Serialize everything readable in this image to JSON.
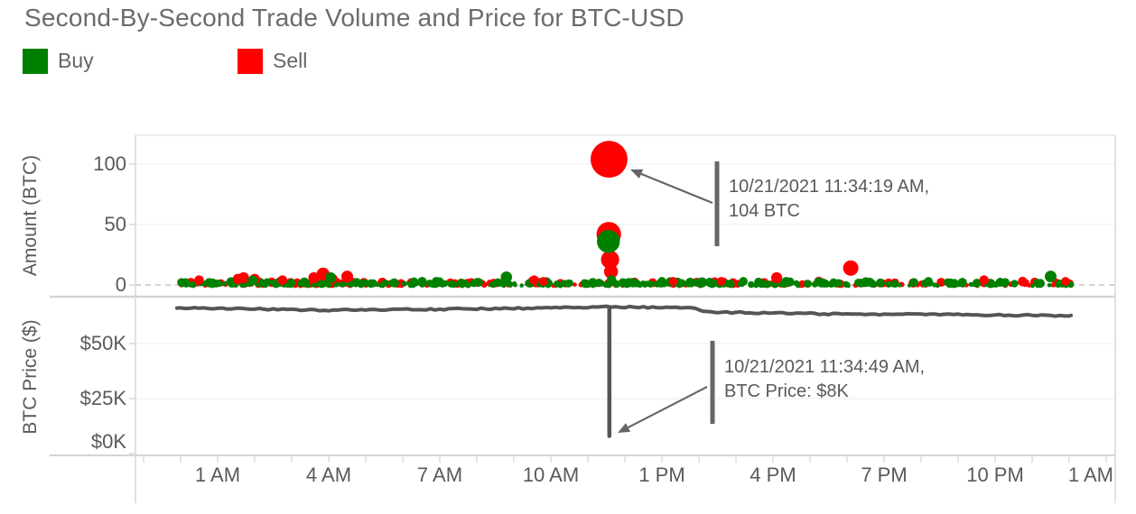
{
  "title": "Second-By-Second Trade Volume and Price for BTC-USD",
  "legend": {
    "items": [
      {
        "label": "Buy",
        "color": "#008000"
      },
      {
        "label": "Sell",
        "color": "#ff0000"
      }
    ]
  },
  "colors": {
    "buy": "#008000",
    "sell": "#ff0000",
    "price_line": "#555555",
    "annotation": "#666666",
    "axis_text": "#595959",
    "grid": "#ececec",
    "zero_dash": "#c4c4c4",
    "border": "#d9d9d9"
  },
  "x_axis": {
    "unit": "time of day on 10/21/2021",
    "tick_labels": [
      "1 AM",
      "4 AM",
      "7 AM",
      "10 AM",
      "1 PM",
      "4 PM",
      "7 PM",
      "10 PM",
      "1 AM"
    ]
  },
  "chart_data": [
    {
      "type": "scatter",
      "panel": "trade-volume",
      "ylabel": "Amount (BTC)",
      "yticks": [
        {
          "value": 0,
          "label": "0"
        },
        {
          "value": 50,
          "label": "50"
        },
        {
          "value": 100,
          "label": "100"
        }
      ],
      "ylim": [
        -4,
        120
      ],
      "xlim_hours": [
        -1.25,
        25.25
      ],
      "xticks": [
        {
          "hour": 1,
          "label": "1 AM"
        },
        {
          "hour": 4,
          "label": "4 AM"
        },
        {
          "hour": 7,
          "label": "7 AM"
        },
        {
          "hour": 10,
          "label": "10 AM"
        },
        {
          "hour": 13,
          "label": "1 PM"
        },
        {
          "hour": 16,
          "label": "4 PM"
        },
        {
          "hour": 19,
          "label": "7 PM"
        },
        {
          "hour": 22,
          "label": "10 PM"
        },
        {
          "hour": 25,
          "label": "1 AM"
        }
      ],
      "series": [
        {
          "name": "Sell",
          "color": "#ff0000",
          "points_hour_amount": [
            [
              0.5,
              4
            ],
            [
              1.55,
              5
            ],
            [
              1.7,
              6
            ],
            [
              2.0,
              5
            ],
            [
              2.75,
              4
            ],
            [
              3.6,
              6
            ],
            [
              3.85,
              9
            ],
            [
              4.1,
              5
            ],
            [
              4.5,
              7
            ],
            [
              9.55,
              4
            ],
            [
              9.8,
              3
            ],
            [
              11.565,
              42
            ],
            [
              11.5719,
              104
            ],
            [
              11.6,
              21
            ],
            [
              11.625,
              11
            ],
            [
              13.3,
              3
            ],
            [
              14.6,
              3
            ],
            [
              16.1,
              6
            ],
            [
              18.1,
              14
            ],
            [
              21.7,
              4
            ],
            [
              23.9,
              3
            ]
          ]
        },
        {
          "name": "Buy",
          "color": "#008000",
          "points_hour_amount": [
            [
              1.95,
              4
            ],
            [
              4.05,
              6
            ],
            [
              6.9,
              3
            ],
            [
              8.8,
              6.5
            ],
            [
              11.555,
              36
            ],
            [
              11.64,
              4
            ],
            [
              13.0,
              3
            ],
            [
              15.2,
              3
            ],
            [
              20.2,
              3
            ],
            [
              23.5,
              7
            ]
          ]
        }
      ],
      "baseline_noise": {
        "description": "dense second-by-second trades under ~4 BTC hugging the zero line all day",
        "count": 520,
        "hour_range": [
          0.0,
          24.05
        ],
        "amount_max": 3.8,
        "buy_fraction": 0.62,
        "seed": 7
      },
      "annotation": {
        "line1": "10/21/2021 11:34:19 AM,",
        "line2": "104 BTC",
        "target": {
          "hour": 11.5719,
          "amount_btc": 104
        }
      }
    },
    {
      "type": "line",
      "panel": "price",
      "ylabel": "BTC Price ($)",
      "yticks": [
        {
          "value": 0,
          "label": "$0K"
        },
        {
          "value": 25,
          "label": "$25K"
        },
        {
          "value": 50,
          "label": "$50K"
        }
      ],
      "ylim": [
        0,
        71
      ],
      "series": [
        {
          "name": "BTC Price",
          "color": "#555555",
          "points_hour_priceK": [
            [
              -0.1,
              66.2
            ],
            [
              0,
              66.2
            ],
            [
              0.5,
              66.1
            ],
            [
              1,
              66.0
            ],
            [
              1.5,
              65.9
            ],
            [
              2,
              65.7
            ],
            [
              2.5,
              65.5
            ],
            [
              3,
              65.3
            ],
            [
              3.5,
              65.2
            ],
            [
              4,
              65.1
            ],
            [
              4.5,
              65.2
            ],
            [
              5,
              65.3
            ],
            [
              5.5,
              65.4
            ],
            [
              6,
              65.5
            ],
            [
              6.5,
              65.5
            ],
            [
              7,
              65.6
            ],
            [
              7.5,
              65.7
            ],
            [
              8,
              65.8
            ],
            [
              8.5,
              65.9
            ],
            [
              9,
              66.0
            ],
            [
              9.5,
              66.2
            ],
            [
              10,
              66.3
            ],
            [
              10.5,
              66.5
            ],
            [
              11,
              66.6
            ],
            [
              11.5,
              66.7
            ],
            [
              12,
              66.6
            ],
            [
              12.5,
              66.5
            ],
            [
              13,
              66.4
            ],
            [
              13.5,
              66.3
            ],
            [
              13.9,
              66.1
            ],
            [
              14.1,
              65.0
            ],
            [
              14.3,
              64.4
            ],
            [
              14.5,
              64.2
            ],
            [
              15,
              64.1
            ],
            [
              15.5,
              64.0
            ],
            [
              16,
              63.9
            ],
            [
              16.5,
              63.7
            ],
            [
              17,
              63.6
            ],
            [
              17.5,
              63.5
            ],
            [
              18,
              63.4
            ],
            [
              18.5,
              63.3
            ],
            [
              19,
              63.3
            ],
            [
              19.5,
              63.4
            ],
            [
              20,
              63.3
            ],
            [
              20.5,
              63.2
            ],
            [
              21,
              63.1
            ],
            [
              21.5,
              63.0
            ],
            [
              22,
              63.0
            ],
            [
              22.5,
              62.9
            ],
            [
              23,
              62.9
            ],
            [
              23.5,
              62.8
            ],
            [
              24,
              62.8
            ],
            [
              24.05,
              62.8
            ]
          ]
        }
      ],
      "spike": {
        "hour": 11.5803,
        "price_k": 8
      },
      "annotation": {
        "line1": "10/21/2021 11:34:49 AM,",
        "line2": "BTC Price: $8K",
        "target": {
          "hour": 11.5803,
          "price_k": 8
        }
      }
    }
  ]
}
